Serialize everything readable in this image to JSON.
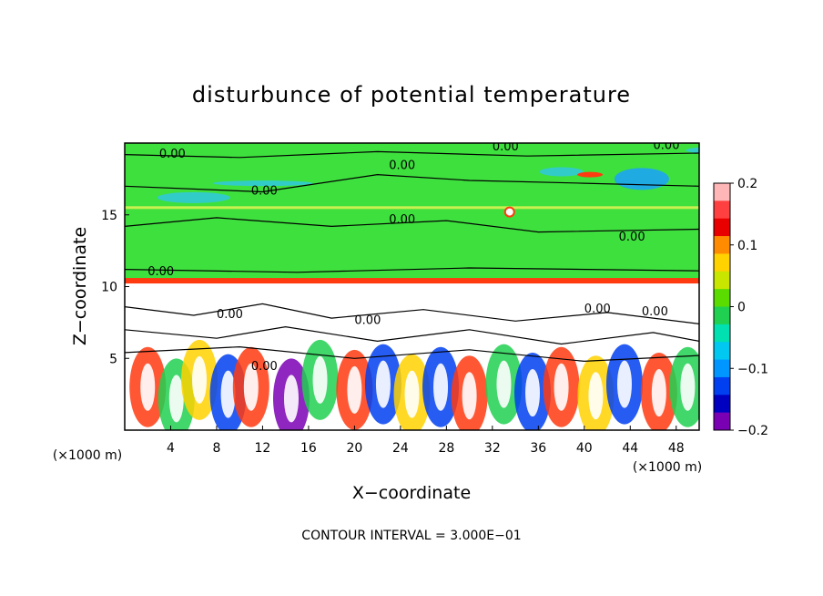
{
  "chart_data": {
    "type": "heatmap",
    "title": "disturbunce of potential temperature",
    "xlabel": "X−coordinate",
    "ylabel": "Z−coordinate",
    "x_unit": "(×1000 m)",
    "y_unit": "(×1000 m)",
    "footer": "CONTOUR INTERVAL = 3.000E−01",
    "xlim": [
      0,
      50
    ],
    "ylim": [
      0,
      20
    ],
    "x_ticks": [
      4,
      8,
      12,
      16,
      20,
      24,
      28,
      32,
      36,
      40,
      44,
      48
    ],
    "y_ticks": [
      5,
      10,
      15
    ],
    "colorbar": {
      "min": -0.2,
      "max": 0.2,
      "tick_values": [
        0.2,
        0.1,
        0,
        -0.1,
        -0.2
      ],
      "tick_labels": [
        "0.2",
        "0.1",
        "0",
        "−0.1",
        "−0.2"
      ],
      "colors": [
        "#ffb6b6",
        "#ff4040",
        "#e80000",
        "#ff8c00",
        "#ffd200",
        "#c8e600",
        "#5adc00",
        "#20d050",
        "#00e0b0",
        "#00c8f0",
        "#0096ff",
        "#0040f0",
        "#0000c0",
        "#7a00b4"
      ]
    },
    "contour_label": "0.00",
    "contour_interval": 0.3,
    "colors": {
      "upper_field": "#3ee03e",
      "tropopause_band": "#ff3a10",
      "lower_field": "#ffffff"
    }
  }
}
